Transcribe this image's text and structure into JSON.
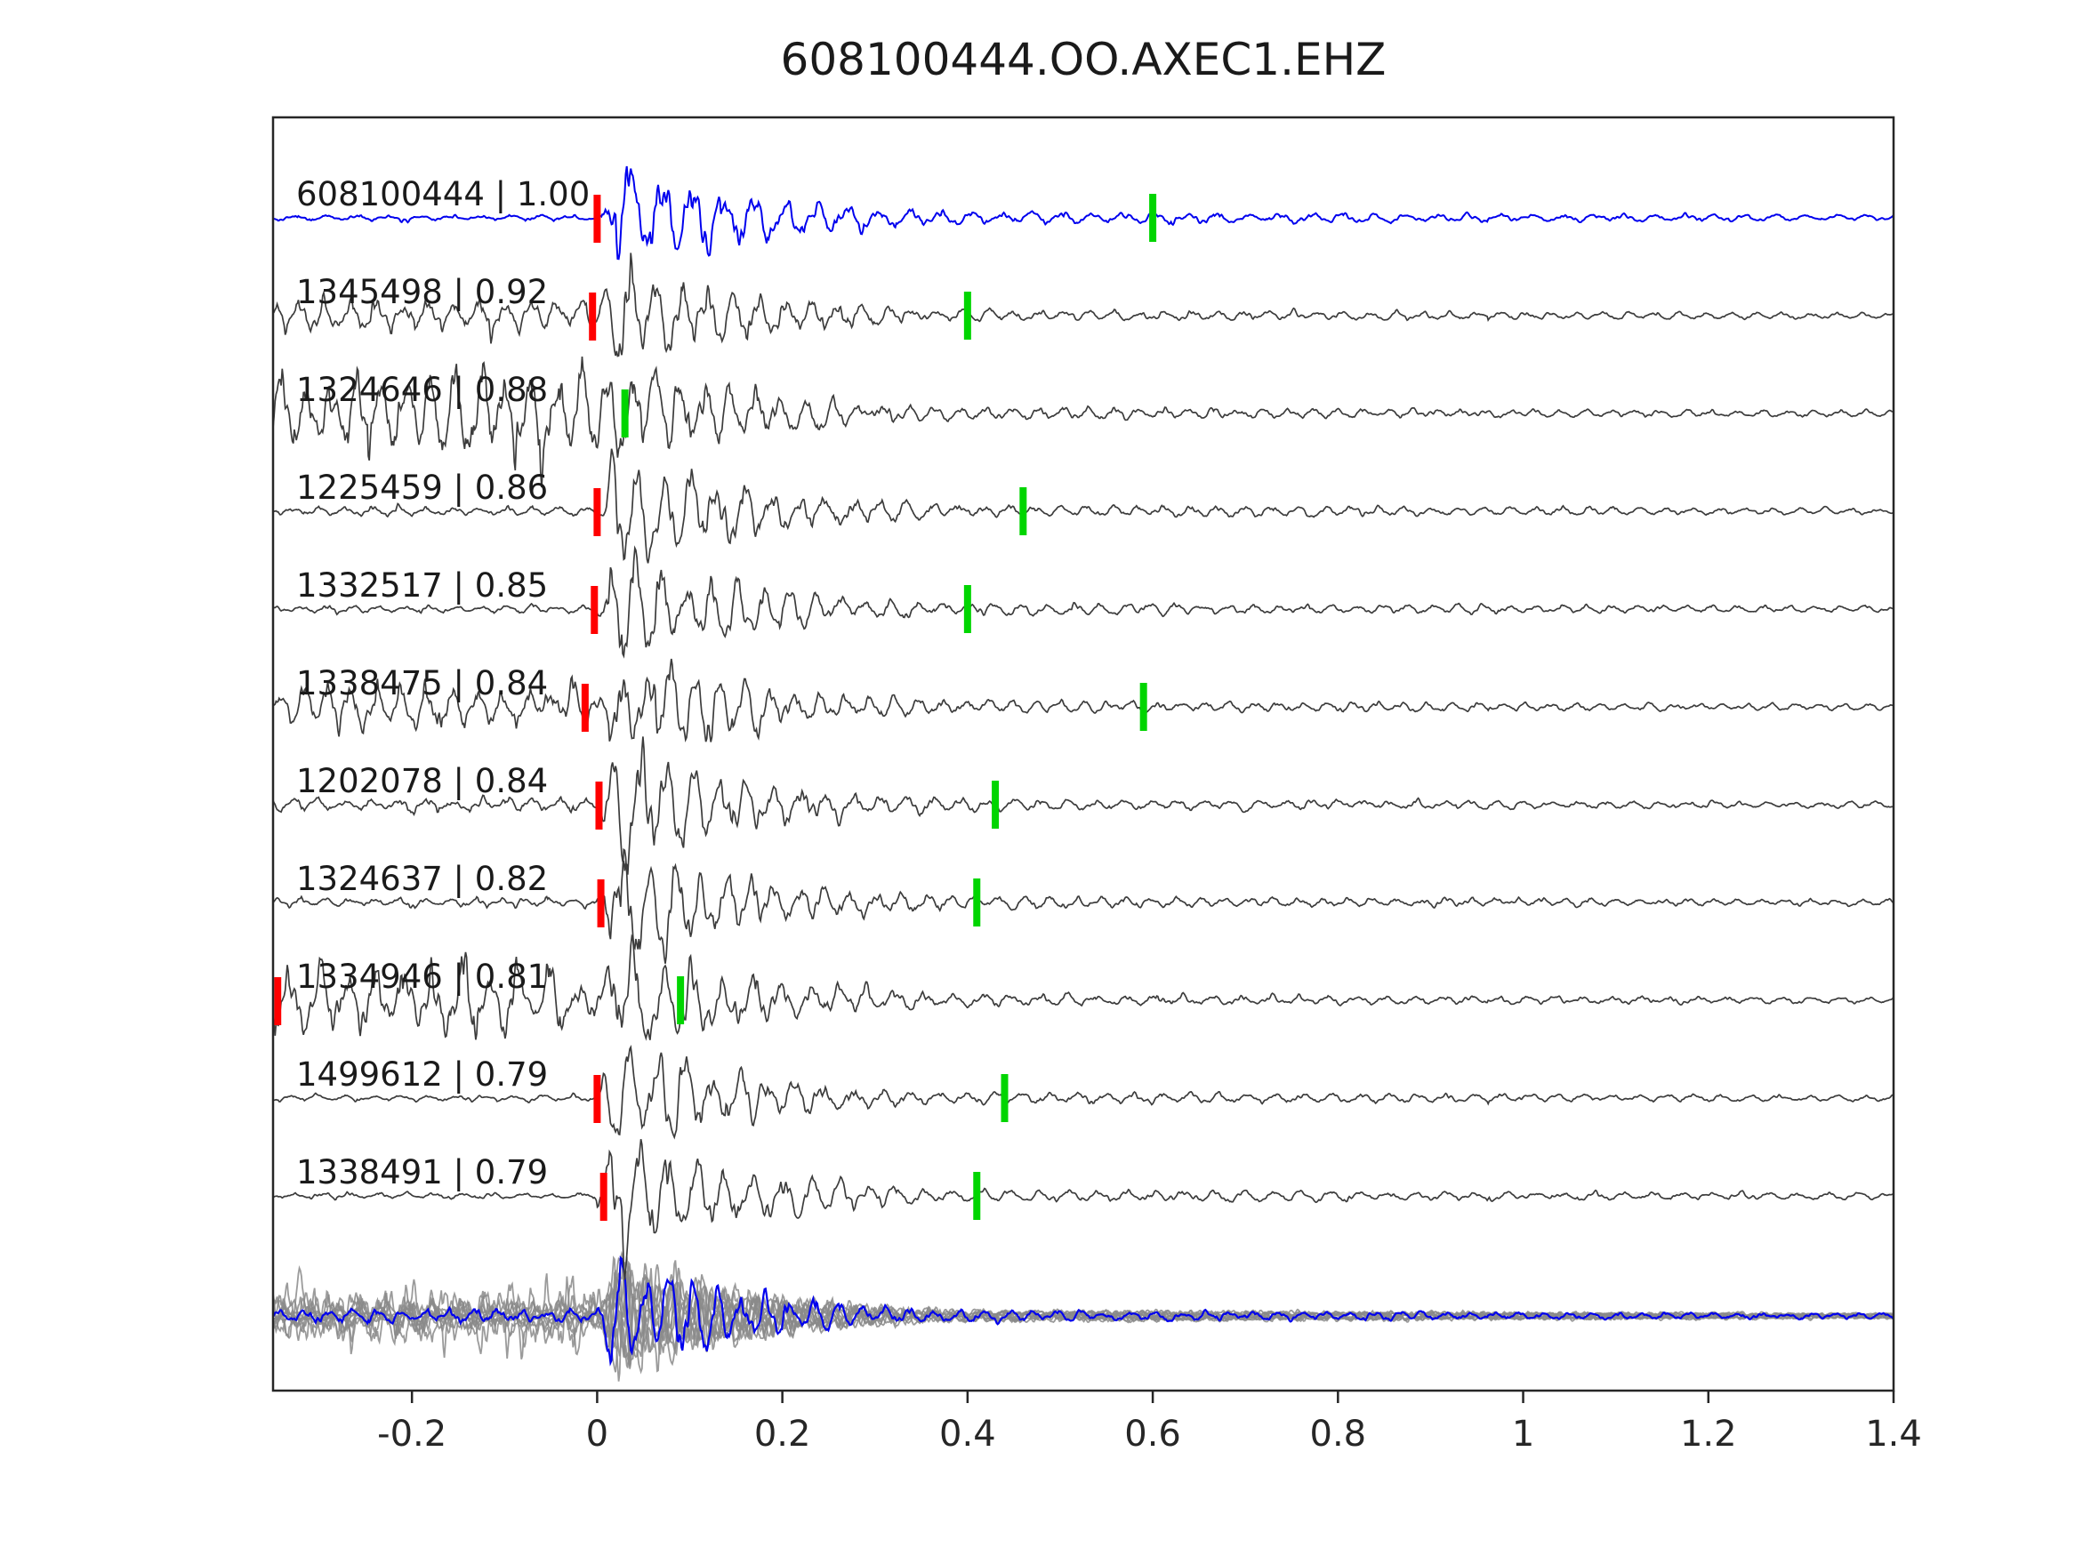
{
  "chart_data": {
    "type": "line",
    "title": "608100444.OO.AXEC1.EHZ",
    "xlabel": "",
    "ylabel": "",
    "xlim": [
      -0.35,
      1.4
    ],
    "grid": false,
    "legend": "none",
    "x_ticks": [
      {
        "v": -0.2,
        "label": "-0.2"
      },
      {
        "v": 0,
        "label": "0"
      },
      {
        "v": 0.2,
        "label": "0.2"
      },
      {
        "v": 0.4,
        "label": "0.4"
      },
      {
        "v": 0.6,
        "label": "0.6"
      },
      {
        "v": 0.8,
        "label": "0.8"
      },
      {
        "v": 1,
        "label": "1"
      },
      {
        "v": 1.2,
        "label": "1.2"
      },
      {
        "v": 1.4,
        "label": "1.4"
      }
    ],
    "colors": {
      "reference_trace": "#0000ee",
      "match_trace": "#3c3c3c",
      "stack_trace": "#8a8a8a",
      "p_pick": "#ff0000",
      "s_pick": "#00d500",
      "axis": "#262626",
      "label_text": "#1a1a1a"
    },
    "traces": [
      {
        "id": "608100444",
        "corr": 1.0,
        "label": "608100444 | 1.00",
        "color": "reference",
        "p_pick": 0.0,
        "s_pick": 0.6,
        "pre_noise": 0.05,
        "seed": 11
      },
      {
        "id": "1345498",
        "corr": 0.92,
        "label": "1345498 | 0.92",
        "color": "match",
        "p_pick": -0.005,
        "s_pick": 0.4,
        "pre_noise": 0.3,
        "seed": 22
      },
      {
        "id": "1324646",
        "corr": 0.88,
        "label": "1324646 | 0.88",
        "color": "match",
        "p_pick": null,
        "s_pick": 0.03,
        "pre_noise": 0.72,
        "seed": 33
      },
      {
        "id": "1225459",
        "corr": 0.86,
        "label": "1225459 | 0.86",
        "color": "match",
        "p_pick": 0.0,
        "s_pick": 0.46,
        "pre_noise": 0.07,
        "seed": 44
      },
      {
        "id": "1332517",
        "corr": 0.85,
        "label": "1332517 | 0.85",
        "color": "match",
        "p_pick": -0.003,
        "s_pick": 0.4,
        "pre_noise": 0.06,
        "seed": 55
      },
      {
        "id": "1338475",
        "corr": 0.84,
        "label": "1338475 | 0.84",
        "color": "match",
        "p_pick": -0.013,
        "s_pick": 0.59,
        "pre_noise": 0.32,
        "seed": 66
      },
      {
        "id": "1202078",
        "corr": 0.84,
        "label": "1202078 | 0.84",
        "color": "match",
        "p_pick": 0.002,
        "s_pick": 0.43,
        "pre_noise": 0.12,
        "seed": 77
      },
      {
        "id": "1324637",
        "corr": 0.82,
        "label": "1324637 | 0.82",
        "color": "match",
        "p_pick": 0.004,
        "s_pick": 0.41,
        "pre_noise": 0.07,
        "seed": 88
      },
      {
        "id": "1334946",
        "corr": 0.81,
        "label": "1334946 | 0.81",
        "color": "match",
        "p_pick": -0.345,
        "s_pick": 0.09,
        "pre_noise": 0.5,
        "seed": 99
      },
      {
        "id": "1499612",
        "corr": 0.79,
        "label": "1499612 | 0.79",
        "color": "match",
        "p_pick": 0.0,
        "s_pick": 0.44,
        "pre_noise": 0.05,
        "seed": 110
      },
      {
        "id": "1338491",
        "corr": 0.79,
        "label": "1338491 | 0.79",
        "color": "match",
        "p_pick": 0.007,
        "s_pick": 0.41,
        "pre_noise": 0.05,
        "seed": 121
      }
    ],
    "stack": {
      "n_overlaid": 11,
      "has_reference_overlay": true
    }
  }
}
